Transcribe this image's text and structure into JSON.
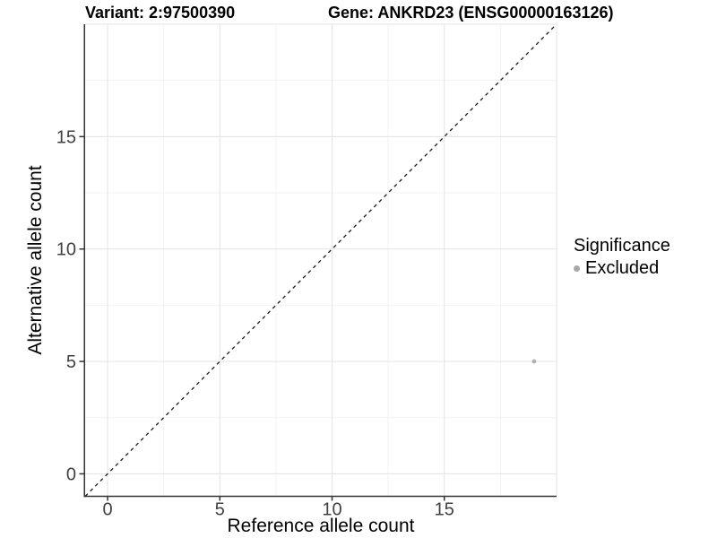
{
  "titles": {
    "variant": "Variant: 2:97500390",
    "gene": "Gene: ANKRD23 (ENSG00000163126)"
  },
  "chart_data": {
    "type": "scatter",
    "title_left": "Variant: 2:97500390",
    "title_right": "Gene: ANKRD23 (ENSG00000163126)",
    "xlabel": "Reference allele count",
    "ylabel": "Alternative allele count",
    "xlim": [
      -1,
      20
    ],
    "ylim": [
      -1,
      20
    ],
    "x_ticks": [
      0,
      5,
      10,
      15
    ],
    "y_ticks": [
      0,
      5,
      10,
      15
    ],
    "grid_major": [
      0,
      5,
      10,
      15,
      20
    ],
    "grid_minor": [
      2.5,
      7.5,
      12.5,
      17.5
    ],
    "grid": true,
    "series": [
      {
        "name": "Excluded",
        "color": "#b0b0b0",
        "points": [
          [
            19,
            5
          ]
        ]
      }
    ],
    "reference_line": {
      "type": "identity",
      "style": "dashed",
      "color": "#1a1a1a"
    },
    "legend": {
      "title": "Significance",
      "position": "right",
      "items": [
        {
          "label": "Excluded",
          "color": "#a8a8a8"
        }
      ]
    },
    "colors": {
      "axis_line": "#333333",
      "tick_text": "#404040",
      "grid_major_color": "#e3e3e3",
      "grid_minor_color": "#f2f2f2"
    }
  }
}
